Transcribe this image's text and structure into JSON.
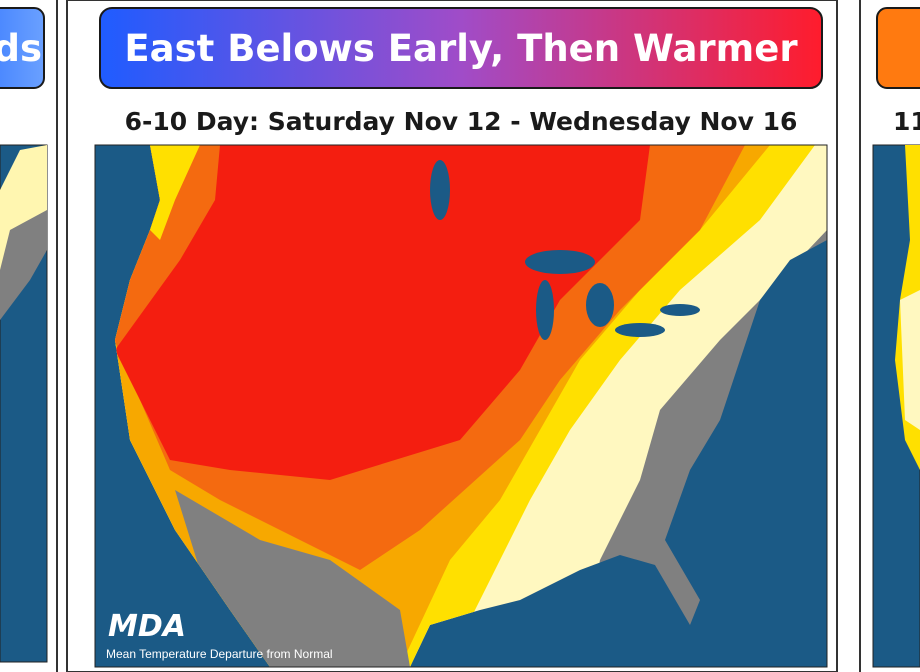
{
  "panels": [
    {
      "title": "ds"
    },
    {
      "title": "East Belows Early, Then Warmer",
      "subtitle": "6-10 Day: Saturday Nov 12 - Wednesday Nov 16",
      "logo": "MDA",
      "caption": "Mean Temperature Departure from Normal"
    },
    {
      "subtitle": "11"
    }
  ]
}
